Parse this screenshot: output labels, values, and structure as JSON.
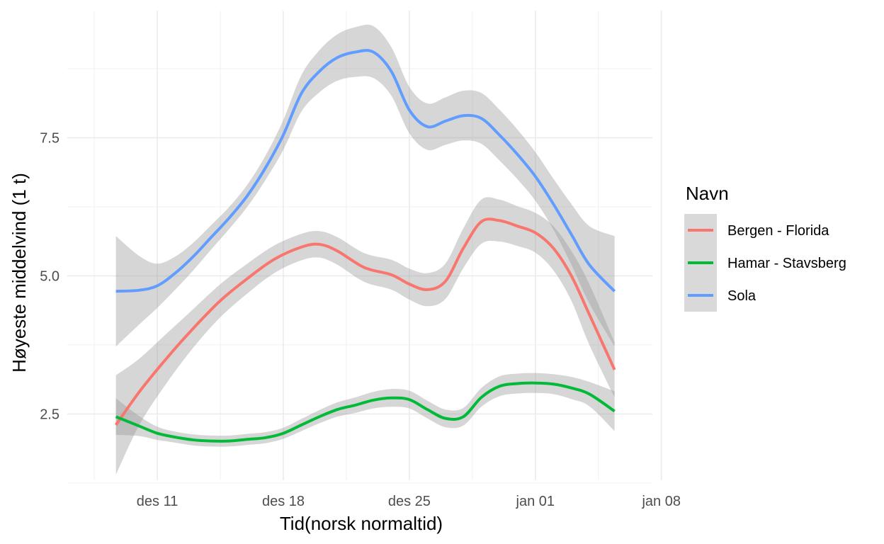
{
  "chart_data": {
    "type": "line",
    "title": "",
    "xlabel": "Tid(norsk normaltid)",
    "ylabel": "Høyeste middelvind (1 t)",
    "x_unit": "days since des 11",
    "xlim": [
      -5,
      27.5
    ],
    "ylim": [
      1.3,
      9.8
    ],
    "x_ticks": [
      {
        "value": 0,
        "label": "des 11"
      },
      {
        "value": 7,
        "label": "des 18"
      },
      {
        "value": 14,
        "label": "des 25"
      },
      {
        "value": 21,
        "label": "jan 01"
      },
      {
        "value": 28,
        "label": "jan 08"
      }
    ],
    "y_ticks": [
      {
        "value": 2.5,
        "label": "2.5"
      },
      {
        "value": 5.0,
        "label": "5.0"
      },
      {
        "value": 7.5,
        "label": "7.5"
      }
    ],
    "grid": true,
    "legend": {
      "title": "Navn",
      "position": "right"
    },
    "series": [
      {
        "name": "Bergen - Florida",
        "color": "#f8766d",
        "x": [
          -2.3,
          -1,
          0.5,
          2,
          3.5,
          5,
          6.5,
          8,
          9,
          10,
          11.5,
          13,
          14,
          15,
          16,
          17,
          18,
          19,
          20,
          21,
          22,
          23,
          24,
          25.4
        ],
        "y": [
          2.3,
          2.9,
          3.5,
          4.05,
          4.55,
          4.95,
          5.3,
          5.52,
          5.57,
          5.45,
          5.15,
          5.02,
          4.85,
          4.75,
          4.9,
          5.5,
          5.98,
          6.0,
          5.9,
          5.78,
          5.5,
          5.0,
          4.3,
          3.3
        ],
        "ci_halfwidth": [
          0.9,
          0.6,
          0.45,
          0.35,
          0.3,
          0.27,
          0.25,
          0.24,
          0.24,
          0.25,
          0.26,
          0.27,
          0.28,
          0.3,
          0.32,
          0.36,
          0.4,
          0.38,
          0.36,
          0.36,
          0.4,
          0.45,
          0.55,
          0.5
        ]
      },
      {
        "name": "Hamar - Stavsberg",
        "color": "#00ba38",
        "x": [
          -2.3,
          -1,
          0,
          1,
          2,
          3,
          4,
          5,
          6,
          7,
          8,
          9,
          10,
          11,
          12,
          13,
          14,
          15,
          16,
          17,
          18,
          19,
          20,
          21,
          22,
          23,
          24,
          25.4
        ],
        "y": [
          2.45,
          2.28,
          2.15,
          2.08,
          2.03,
          2.01,
          2.01,
          2.04,
          2.07,
          2.15,
          2.3,
          2.45,
          2.58,
          2.66,
          2.75,
          2.79,
          2.76,
          2.58,
          2.42,
          2.45,
          2.8,
          3.0,
          3.05,
          3.06,
          3.04,
          2.97,
          2.86,
          2.55
        ],
        "ci_halfwidth": [
          0.33,
          0.18,
          0.12,
          0.1,
          0.1,
          0.1,
          0.1,
          0.1,
          0.1,
          0.1,
          0.11,
          0.12,
          0.13,
          0.14,
          0.15,
          0.16,
          0.16,
          0.16,
          0.16,
          0.16,
          0.17,
          0.18,
          0.18,
          0.18,
          0.18,
          0.2,
          0.22,
          0.36
        ]
      },
      {
        "name": "Sola",
        "color": "#619cff",
        "x": [
          -2.3,
          -1,
          0,
          1,
          2,
          3,
          4,
          5,
          6,
          7,
          8,
          9,
          10,
          11,
          12,
          13,
          14,
          15,
          16,
          17,
          18,
          19,
          20,
          21,
          22,
          23,
          24,
          25.4
        ],
        "y": [
          4.72,
          4.74,
          4.82,
          5.05,
          5.35,
          5.7,
          6.05,
          6.45,
          6.95,
          7.55,
          8.3,
          8.7,
          8.95,
          9.05,
          9.05,
          8.7,
          8.0,
          7.7,
          7.8,
          7.9,
          7.85,
          7.55,
          7.2,
          6.8,
          6.3,
          5.75,
          5.2,
          4.72
        ],
        "ci_halfwidth": [
          1.0,
          0.62,
          0.4,
          0.3,
          0.25,
          0.22,
          0.2,
          0.2,
          0.22,
          0.27,
          0.33,
          0.38,
          0.42,
          0.45,
          0.47,
          0.44,
          0.42,
          0.42,
          0.43,
          0.45,
          0.46,
          0.46,
          0.45,
          0.44,
          0.46,
          0.55,
          0.7,
          1.0
        ]
      }
    ]
  }
}
